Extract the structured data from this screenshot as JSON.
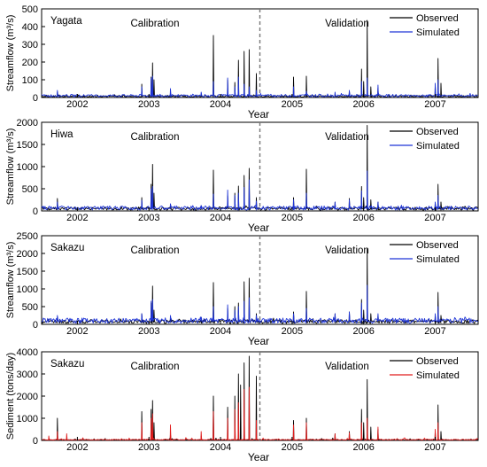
{
  "chart_data": [
    {
      "type": "line",
      "panel_label": "Yagata",
      "ylabel": "Streamflow (m³/s)",
      "xlabel": "Year",
      "ylim": [
        0,
        500
      ],
      "yticks": [
        0,
        100,
        200,
        300,
        400,
        500
      ],
      "xlim": [
        2001.5,
        2007.6
      ],
      "xticks": [
        {
          "label": "2002",
          "x": 2002.0
        },
        {
          "label": "2003",
          "x": 2003.0
        },
        {
          "label": "2004",
          "x": 2004.0
        },
        {
          "label": "2005",
          "x": 2005.0
        },
        {
          "label": "2006",
          "x": 2006.0
        },
        {
          "label": "2007",
          "x": 2007.0
        }
      ],
      "split_x": 2004.55,
      "annotations": {
        "left": "Calibration",
        "right": "Validation"
      },
      "baseline": {
        "observed": 5,
        "simulated": 8
      },
      "series": [
        {
          "name": "Observed",
          "color": "#000000",
          "peaks": [
            [
              2001.72,
              30
            ],
            [
              2002.9,
              75
            ],
            [
              2003.03,
              115
            ],
            [
              2003.05,
              195
            ],
            [
              2003.07,
              100
            ],
            [
              2003.3,
              30
            ],
            [
              2003.73,
              20
            ],
            [
              2003.9,
              350
            ],
            [
              2004.1,
              100
            ],
            [
              2004.2,
              85
            ],
            [
              2004.25,
              210
            ],
            [
              2004.33,
              260
            ],
            [
              2004.4,
              270
            ],
            [
              2004.5,
              135
            ],
            [
              2005.02,
              115
            ],
            [
              2005.2,
              120
            ],
            [
              2005.6,
              20
            ],
            [
              2005.8,
              35
            ],
            [
              2005.97,
              160
            ],
            [
              2006.0,
              90
            ],
            [
              2006.05,
              435
            ],
            [
              2006.1,
              60
            ],
            [
              2006.2,
              55
            ],
            [
              2007.0,
              70
            ],
            [
              2007.04,
              220
            ],
            [
              2007.08,
              80
            ]
          ]
        },
        {
          "name": "Simulated",
          "color": "#1f35d6",
          "peaks": [
            [
              2001.72,
              40
            ],
            [
              2002.9,
              60
            ],
            [
              2003.03,
              110
            ],
            [
              2003.05,
              120
            ],
            [
              2003.3,
              50
            ],
            [
              2003.73,
              30
            ],
            [
              2003.9,
              90
            ],
            [
              2004.1,
              110
            ],
            [
              2004.2,
              60
            ],
            [
              2004.25,
              115
            ],
            [
              2004.33,
              75
            ],
            [
              2004.4,
              60
            ],
            [
              2004.5,
              40
            ],
            [
              2005.02,
              60
            ],
            [
              2005.2,
              35
            ],
            [
              2005.6,
              30
            ],
            [
              2005.8,
              40
            ],
            [
              2005.97,
              90
            ],
            [
              2006.05,
              110
            ],
            [
              2006.2,
              70
            ],
            [
              2007.0,
              80
            ],
            [
              2007.04,
              100
            ]
          ]
        }
      ]
    },
    {
      "type": "line",
      "panel_label": "Hiwa",
      "ylabel": "Streamflow (m³/s)",
      "xlabel": "Year",
      "ylim": [
        0,
        2000
      ],
      "yticks": [
        0,
        500,
        1000,
        1500,
        2000
      ],
      "xlim": [
        2001.5,
        2007.6
      ],
      "xticks": [
        {
          "label": "2002",
          "x": 2002.0
        },
        {
          "label": "2003",
          "x": 2003.0
        },
        {
          "label": "2004",
          "x": 2004.0
        },
        {
          "label": "2005",
          "x": 2005.0
        },
        {
          "label": "2006",
          "x": 2006.0
        },
        {
          "label": "2007",
          "x": 2007.0
        }
      ],
      "split_x": 2004.55,
      "annotations": {
        "left": "Calibration",
        "right": "Validation"
      },
      "baseline": {
        "observed": 40,
        "simulated": 50
      },
      "series": [
        {
          "name": "Observed",
          "color": "#000000",
          "peaks": [
            [
              2001.72,
              280
            ],
            [
              2002.9,
              300
            ],
            [
              2003.03,
              600
            ],
            [
              2003.05,
              1050
            ],
            [
              2003.07,
              400
            ],
            [
              2003.3,
              150
            ],
            [
              2003.73,
              120
            ],
            [
              2003.9,
              920
            ],
            [
              2004.1,
              340
            ],
            [
              2004.2,
              400
            ],
            [
              2004.25,
              560
            ],
            [
              2004.33,
              800
            ],
            [
              2004.4,
              960
            ],
            [
              2004.5,
              300
            ],
            [
              2005.02,
              300
            ],
            [
              2005.2,
              940
            ],
            [
              2005.6,
              200
            ],
            [
              2005.8,
              280
            ],
            [
              2005.97,
              550
            ],
            [
              2006.0,
              300
            ],
            [
              2006.05,
              1930
            ],
            [
              2006.1,
              250
            ],
            [
              2006.2,
              200
            ],
            [
              2007.0,
              180
            ],
            [
              2007.04,
              600
            ],
            [
              2007.08,
              200
            ]
          ]
        },
        {
          "name": "Simulated",
          "color": "#1f35d6",
          "peaks": [
            [
              2001.72,
              200
            ],
            [
              2002.9,
              240
            ],
            [
              2003.03,
              500
            ],
            [
              2003.05,
              550
            ],
            [
              2003.3,
              160
            ],
            [
              2003.73,
              120
            ],
            [
              2003.9,
              380
            ],
            [
              2004.1,
              470
            ],
            [
              2004.2,
              350
            ],
            [
              2004.25,
              400
            ],
            [
              2004.33,
              530
            ],
            [
              2004.4,
              700
            ],
            [
              2004.5,
              220
            ],
            [
              2005.02,
              250
            ],
            [
              2005.2,
              400
            ],
            [
              2005.6,
              200
            ],
            [
              2005.8,
              250
            ],
            [
              2005.97,
              450
            ],
            [
              2006.05,
              900
            ],
            [
              2006.2,
              200
            ],
            [
              2007.0,
              200
            ],
            [
              2007.04,
              350
            ]
          ]
        }
      ]
    },
    {
      "type": "line",
      "panel_label": "Sakazu",
      "ylabel": "Streamflow (m³/s)",
      "xlabel": "Year",
      "ylim": [
        0,
        2500
      ],
      "yticks": [
        0,
        500,
        1000,
        1500,
        2000,
        2500
      ],
      "xlim": [
        2001.5,
        2007.6
      ],
      "xticks": [
        {
          "label": "2002",
          "x": 2002.0
        },
        {
          "label": "2003",
          "x": 2003.0
        },
        {
          "label": "2004",
          "x": 2004.0
        },
        {
          "label": "2005",
          "x": 2005.0
        },
        {
          "label": "2006",
          "x": 2006.0
        },
        {
          "label": "2007",
          "x": 2007.0
        }
      ],
      "split_x": 2004.55,
      "annotations": {
        "left": "Calibration",
        "right": "Validation"
      },
      "baseline": {
        "observed": 60,
        "simulated": 80
      },
      "series": [
        {
          "name": "Observed",
          "color": "#000000",
          "peaks": [
            [
              2001.72,
              200
            ],
            [
              2002.9,
              300
            ],
            [
              2003.03,
              600
            ],
            [
              2003.05,
              1080
            ],
            [
              2003.07,
              400
            ],
            [
              2003.3,
              200
            ],
            [
              2003.73,
              200
            ],
            [
              2003.9,
              1180
            ],
            [
              2004.1,
              450
            ],
            [
              2004.2,
              500
            ],
            [
              2004.25,
              600
            ],
            [
              2004.33,
              1200
            ],
            [
              2004.4,
              1300
            ],
            [
              2004.5,
              300
            ],
            [
              2005.02,
              350
            ],
            [
              2005.2,
              930
            ],
            [
              2005.6,
              300
            ],
            [
              2005.8,
              350
            ],
            [
              2005.97,
              700
            ],
            [
              2006.0,
              400
            ],
            [
              2006.05,
              2130
            ],
            [
              2006.1,
              300
            ],
            [
              2006.2,
              250
            ],
            [
              2007.0,
              250
            ],
            [
              2007.04,
              900
            ],
            [
              2007.08,
              250
            ]
          ]
        },
        {
          "name": "Simulated",
          "color": "#1f35d6",
          "peaks": [
            [
              2001.72,
              250
            ],
            [
              2002.9,
              300
            ],
            [
              2003.03,
              650
            ],
            [
              2003.05,
              700
            ],
            [
              2003.3,
              250
            ],
            [
              2003.73,
              200
            ],
            [
              2003.9,
              500
            ],
            [
              2004.1,
              550
            ],
            [
              2004.2,
              400
            ],
            [
              2004.25,
              500
            ],
            [
              2004.33,
              650
            ],
            [
              2004.4,
              750
            ],
            [
              2004.5,
              250
            ],
            [
              2005.02,
              300
            ],
            [
              2005.2,
              450
            ],
            [
              2005.6,
              300
            ],
            [
              2005.8,
              350
            ],
            [
              2005.97,
              600
            ],
            [
              2006.05,
              1100
            ],
            [
              2006.2,
              300
            ],
            [
              2007.0,
              300
            ],
            [
              2007.04,
              500
            ]
          ]
        }
      ]
    },
    {
      "type": "line",
      "panel_label": "Sakazu",
      "ylabel": "Sediment (tons/day)",
      "xlabel": "Year",
      "ylim": [
        0,
        4000
      ],
      "yticks": [
        0,
        1000,
        2000,
        3000,
        4000
      ],
      "xlim": [
        2001.5,
        2007.6
      ],
      "xticks": [
        {
          "label": "2002",
          "x": 2002.0
        },
        {
          "label": "2003",
          "x": 2003.0
        },
        {
          "label": "2004",
          "x": 2004.0
        },
        {
          "label": "2005",
          "x": 2005.0
        },
        {
          "label": "2006",
          "x": 2006.0
        },
        {
          "label": "2007",
          "x": 2007.0
        }
      ],
      "split_x": 2004.55,
      "annotations": {
        "left": "Calibration",
        "right": "Validation"
      },
      "baseline": {
        "observed": 15,
        "simulated": 25
      },
      "series": [
        {
          "name": "Observed",
          "color": "#000000",
          "peaks": [
            [
              2001.72,
              1000
            ],
            [
              2002.9,
              1300
            ],
            [
              2003.03,
              1400
            ],
            [
              2003.05,
              1800
            ],
            [
              2003.07,
              800
            ],
            [
              2003.3,
              300
            ],
            [
              2003.73,
              200
            ],
            [
              2003.9,
              2000
            ],
            [
              2004.1,
              1500
            ],
            [
              2004.2,
              2000
            ],
            [
              2004.25,
              3000
            ],
            [
              2004.28,
              2500
            ],
            [
              2004.33,
              3500
            ],
            [
              2004.4,
              3800
            ],
            [
              2004.5,
              2900
            ],
            [
              2005.02,
              900
            ],
            [
              2005.2,
              1000
            ],
            [
              2005.6,
              300
            ],
            [
              2005.8,
              400
            ],
            [
              2005.97,
              1400
            ],
            [
              2006.0,
              800
            ],
            [
              2006.05,
              2750
            ],
            [
              2006.1,
              600
            ],
            [
              2006.2,
              500
            ],
            [
              2007.0,
              400
            ],
            [
              2007.04,
              1600
            ],
            [
              2007.08,
              400
            ]
          ]
        },
        {
          "name": "Simulated",
          "color": "#e01d1d",
          "peaks": [
            [
              2001.6,
              200
            ],
            [
              2001.72,
              400
            ],
            [
              2001.85,
              300
            ],
            [
              2002.9,
              800
            ],
            [
              2003.03,
              1000
            ],
            [
              2003.05,
              1200
            ],
            [
              2003.3,
              700
            ],
            [
              2003.73,
              400
            ],
            [
              2003.9,
              1300
            ],
            [
              2004.1,
              1000
            ],
            [
              2004.2,
              1400
            ],
            [
              2004.25,
              1700
            ],
            [
              2004.33,
              2300
            ],
            [
              2004.4,
              2400
            ],
            [
              2004.5,
              900
            ],
            [
              2005.02,
              700
            ],
            [
              2005.2,
              800
            ],
            [
              2005.6,
              300
            ],
            [
              2005.8,
              350
            ],
            [
              2005.97,
              800
            ],
            [
              2006.05,
              1000
            ],
            [
              2006.2,
              600
            ],
            [
              2007.0,
              500
            ],
            [
              2007.04,
              800
            ]
          ]
        }
      ]
    }
  ]
}
